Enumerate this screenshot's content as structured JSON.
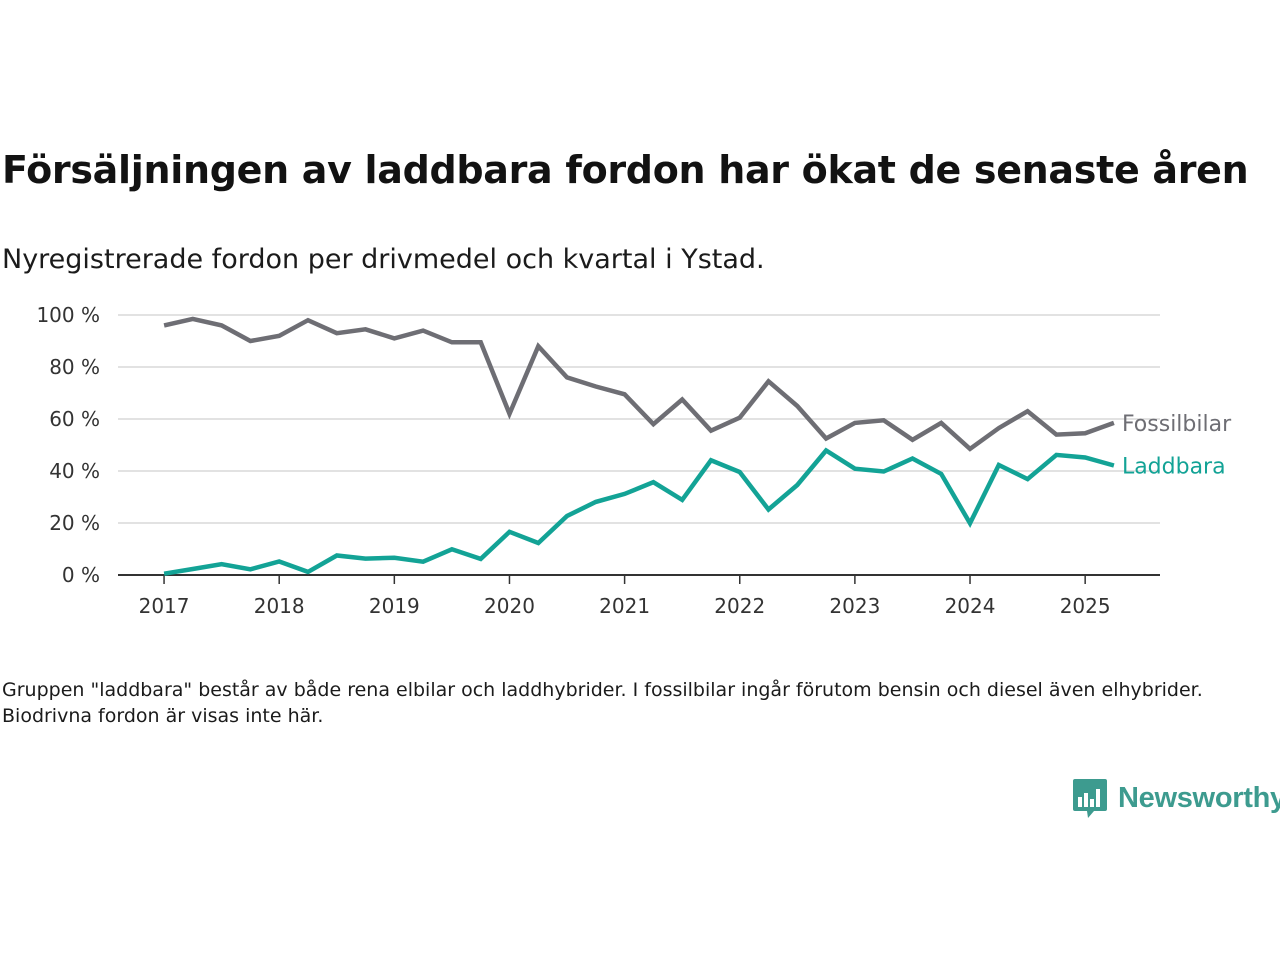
{
  "header": {
    "title": "Försäljningen av laddbara fordon har ökat de senaste åren",
    "subtitle": "Nyregistrerade fordon per drivmedel och kvartal i Ystad."
  },
  "footer": {
    "note": "Gruppen \"laddbara\" består av både rena elbilar och laddhybrider. I fossilbilar ingår förutom bensin och diesel även elhybrider. Biodrivna fordon är visas inte här.",
    "brand": "Newsworthy"
  },
  "colors": {
    "fossil": "#6e6e74",
    "laddbara": "#13a396",
    "grid": "#d9d9d9",
    "axis": "#333333",
    "brand": "#3d9b8f"
  },
  "chart_data": {
    "type": "line",
    "x": [
      2017.0,
      2017.25,
      2017.5,
      2017.75,
      2018.0,
      2018.25,
      2018.5,
      2018.75,
      2019.0,
      2019.25,
      2019.5,
      2019.75,
      2020.0,
      2020.25,
      2020.5,
      2020.75,
      2021.0,
      2021.25,
      2021.5,
      2021.75,
      2022.0,
      2022.25,
      2022.5,
      2022.75,
      2023.0,
      2023.25,
      2023.5,
      2023.75,
      2024.0,
      2024.25,
      2024.5,
      2024.75,
      2025.0,
      2025.25
    ],
    "x_ticks": [
      2017,
      2018,
      2019,
      2020,
      2021,
      2022,
      2023,
      2024,
      2025
    ],
    "x_tick_labels": [
      "2017",
      "2018",
      "2019",
      "2020",
      "2021",
      "2022",
      "2023",
      "2024",
      "2025"
    ],
    "xlim": [
      2016.6,
      2025.65
    ],
    "y_ticks": [
      0,
      20,
      40,
      60,
      80,
      100
    ],
    "y_tick_labels": [
      "0 %",
      "20 %",
      "40 %",
      "60 %",
      "80 %",
      "100 %"
    ],
    "ylim": [
      0,
      100
    ],
    "grid": true,
    "series": [
      {
        "key": "fossil",
        "name": "Fossilbilar",
        "values": [
          96,
          98.5,
          96,
          90,
          92,
          98,
          93,
          94.5,
          91,
          94,
          89.5,
          89.5,
          62,
          88,
          76,
          72.5,
          69.5,
          58,
          67.5,
          55.5,
          60.5,
          74.5,
          65,
          52.5,
          58.5,
          59.5,
          52,
          58.5,
          48.5,
          56.5,
          63,
          54,
          54.5,
          58.5
        ]
      },
      {
        "key": "laddbara",
        "name": "Laddbara",
        "values": [
          0.5,
          2.3,
          4.2,
          2.2,
          5.2,
          1.2,
          7.5,
          6.3,
          6.6,
          5.1,
          9.9,
          6.2,
          16.6,
          12.3,
          22.7,
          28.1,
          31.2,
          35.7,
          28.9,
          44.1,
          39.6,
          25.2,
          34.6,
          47.9,
          40.9,
          39.8,
          44.8,
          38.9,
          19.9,
          42.3,
          36.9,
          46.2,
          45.2,
          42.1
        ]
      }
    ]
  }
}
